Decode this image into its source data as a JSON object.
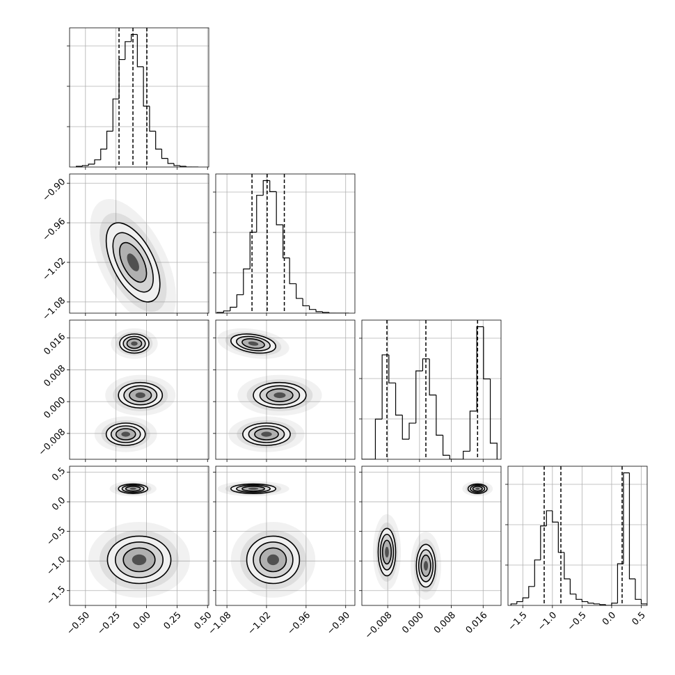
{
  "chart_data": {
    "type": "corner",
    "params": [
      {
        "lim": [
          -0.63,
          0.51
        ],
        "ticks": [
          {
            "value": -0.5,
            "label": "−0.50"
          },
          {
            "value": -0.25,
            "label": "−0.25"
          },
          {
            "value": 0,
            "label": "0.00"
          },
          {
            "value": 0.25,
            "label": "0.25"
          },
          {
            "value": 0.5,
            "label": "0.50"
          }
        ],
        "quantiles": [
          -0.225,
          -0.111,
          0.003
        ],
        "bins": [
          -0.575,
          -0.525,
          -0.475,
          -0.425,
          -0.375,
          -0.325,
          -0.275,
          -0.225,
          -0.175,
          -0.125,
          -0.075,
          -0.025,
          0.025,
          0.075,
          0.125,
          0.175,
          0.225,
          0.275,
          0.325,
          0.375,
          0.425
        ],
        "counts": [
          1,
          2,
          4,
          10,
          25,
          50,
          95,
          150,
          175,
          185,
          140,
          85,
          50,
          25,
          12,
          5,
          2,
          1,
          0,
          0
        ]
      },
      {
        "lim": [
          -1.097,
          -0.886
        ],
        "ticks": [
          {
            "value": -1.08,
            "label": "−1.08"
          },
          {
            "value": -1.02,
            "label": "−1.02"
          },
          {
            "value": -0.96,
            "label": "−0.96"
          },
          {
            "value": -0.9,
            "label": "−0.90"
          }
        ],
        "quantiles": [
          -1.042,
          -1.019,
          -0.993
        ],
        "bins": [
          -1.095,
          -1.085,
          -1.075,
          -1.065,
          -1.055,
          -1.045,
          -1.035,
          -1.025,
          -1.015,
          -1.005,
          -0.995,
          -0.985,
          -0.975,
          -0.965,
          -0.955,
          -0.945,
          -0.935,
          -0.925,
          -0.915,
          -0.905,
          -0.895
        ],
        "counts": [
          1,
          3,
          8,
          25,
          60,
          110,
          160,
          180,
          165,
          120,
          75,
          40,
          20,
          10,
          5,
          2,
          1,
          0,
          0,
          0
        ]
      },
      {
        "lim": [
          -0.0145,
          0.0205
        ],
        "ticks": [
          {
            "value": -0.008,
            "label": "−0.008"
          },
          {
            "value": 0,
            "label": "0.000"
          },
          {
            "value": 0.008,
            "label": "0.008"
          },
          {
            "value": 0.016,
            "label": "0.016"
          }
        ],
        "quantiles": [
          -0.0082,
          0.0016,
          0.0146
        ],
        "bins": [
          -0.0145,
          -0.0128,
          -0.0111,
          -0.0094,
          -0.0077,
          -0.006,
          -0.0043,
          -0.0026,
          -0.0009,
          0.0008,
          0.0025,
          0.0042,
          0.0059,
          0.0076,
          0.0093,
          0.011,
          0.0127,
          0.0144,
          0.0161,
          0.0178,
          0.0195
        ],
        "counts": [
          0,
          0,
          50,
          130,
          95,
          55,
          25,
          45,
          110,
          125,
          80,
          30,
          5,
          0,
          0,
          10,
          60,
          165,
          100,
          20
        ]
      },
      {
        "lim": [
          -1.75,
          0.6
        ],
        "ticks": [
          {
            "value": -1.5,
            "label": "−1.5"
          },
          {
            "value": -1,
            "label": "−1.0"
          },
          {
            "value": -0.5,
            "label": "−0.5"
          },
          {
            "value": 0,
            "label": "0.0"
          },
          {
            "value": 0.5,
            "label": "0.5"
          }
        ],
        "quantiles": [
          -1.139,
          -0.857,
          0.177
        ],
        "bins": [
          -1.7,
          -1.6,
          -1.5,
          -1.4,
          -1.3,
          -1.2,
          -1.1,
          -1.0,
          -0.9,
          -0.8,
          -0.7,
          -0.6,
          -0.5,
          -0.4,
          -0.3,
          -0.2,
          -0.1,
          0.0,
          0.1,
          0.2,
          0.3,
          0.4,
          0.5,
          0.6
        ],
        "counts": [
          2,
          5,
          10,
          25,
          60,
          105,
          125,
          110,
          70,
          35,
          15,
          8,
          5,
          3,
          2,
          1,
          0,
          3,
          55,
          175,
          35,
          8,
          2
        ]
      }
    ],
    "pairs": [
      {
        "x_param": 0,
        "y_param": 1,
        "components": [
          {
            "x": -0.11,
            "y": -1.02,
            "sx": 0.11,
            "sy": 0.03,
            "rho": -0.55
          }
        ]
      },
      {
        "x_param": 0,
        "y_param": 2,
        "components": [
          {
            "x": -0.1,
            "y": 0.0146,
            "sx": 0.06,
            "sy": 0.0012,
            "rho": 0
          },
          {
            "x": -0.05,
            "y": 0.0016,
            "sx": 0.09,
            "sy": 0.0016,
            "rho": 0
          },
          {
            "x": -0.17,
            "y": -0.0082,
            "sx": 0.08,
            "sy": 0.0014,
            "rho": 0
          }
        ]
      },
      {
        "x_param": 1,
        "y_param": 2,
        "components": [
          {
            "x": -1.04,
            "y": 0.0146,
            "sx": 0.017,
            "sy": 0.0012,
            "rho": -0.3
          },
          {
            "x": -1.0,
            "y": 0.0016,
            "sx": 0.02,
            "sy": 0.0016,
            "rho": 0
          },
          {
            "x": -1.02,
            "y": -0.0082,
            "sx": 0.018,
            "sy": 0.0014,
            "rho": 0
          }
        ]
      },
      {
        "x_param": 0,
        "y_param": 3,
        "components": [
          {
            "x": -0.11,
            "y": 0.22,
            "sx": 0.06,
            "sy": 0.04,
            "rho": 0
          },
          {
            "x": -0.06,
            "y": -0.98,
            "sx": 0.13,
            "sy": 0.2,
            "rho": 0
          }
        ]
      },
      {
        "x_param": 1,
        "y_param": 3,
        "components": [
          {
            "x": -1.04,
            "y": 0.22,
            "sx": 0.017,
            "sy": 0.04,
            "rho": 0
          },
          {
            "x": -1.01,
            "y": -0.98,
            "sx": 0.02,
            "sy": 0.2,
            "rho": 0
          }
        ]
      },
      {
        "x_param": 2,
        "y_param": 3,
        "components": [
          {
            "x": 0.0146,
            "y": 0.22,
            "sx": 0.0012,
            "sy": 0.04,
            "rho": 0
          },
          {
            "x": -0.0082,
            "y": -0.85,
            "sx": 0.0011,
            "sy": 0.2,
            "rho": 0
          },
          {
            "x": 0.0016,
            "y": -1.08,
            "sx": 0.0012,
            "sy": 0.18,
            "rho": 0
          }
        ]
      }
    ]
  }
}
